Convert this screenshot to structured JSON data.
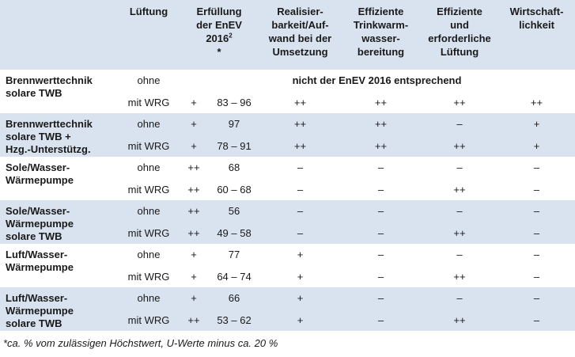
{
  "header": {
    "col_luftung": "Lüftung",
    "col_erfuellung": [
      "Erfüllung",
      "der EnEV",
      "2016",
      "*"
    ],
    "col_erfuellung_sup": "2",
    "col_realisier": [
      "Realisier-",
      "barkeit/Auf-",
      "wand bei der",
      "Umsetzung"
    ],
    "col_trinkwarm": [
      "Effiziente",
      "Trinkwarm-",
      "wasser-",
      "bereitung"
    ],
    "col_lueftung": [
      "Effiziente",
      "und",
      "erforderliche",
      "Lüftung"
    ],
    "col_wirtschaft": [
      "Wirtschaft-",
      "lichkeit"
    ]
  },
  "groups": [
    {
      "system": [
        "Brennwerttechnik",
        "solare TWB"
      ],
      "rows": [
        {
          "luftung": "ohne",
          "note": "nicht der EnEV 2016 entsprechend"
        },
        {
          "luftung": "mit WRG",
          "sym": "+",
          "pct": "83 – 96",
          "real": "++",
          "trink": "++",
          "luef": "++",
          "wirt": "++"
        }
      ]
    },
    {
      "system": [
        "Brennwerttechnik",
        "solare TWB +",
        "Hzg.-Unterstützg."
      ],
      "rows": [
        {
          "luftung": "ohne",
          "sym": "+",
          "pct": "97",
          "real": "++",
          "trink": "++",
          "luef": "–",
          "wirt": "+"
        },
        {
          "luftung": "mit WRG",
          "sym": "+",
          "pct": "78 – 91",
          "real": "++",
          "trink": "++",
          "luef": "++",
          "wirt": "+"
        }
      ]
    },
    {
      "system": [
        "Sole/Wasser-",
        "Wärmepumpe"
      ],
      "rows": [
        {
          "luftung": "ohne",
          "sym": "++",
          "pct": "68",
          "real": "–",
          "trink": "–",
          "luef": "–",
          "wirt": "–"
        },
        {
          "luftung": "mit WRG",
          "sym": "++",
          "pct": "60 – 68",
          "real": "–",
          "trink": "–",
          "luef": "++",
          "wirt": "–"
        }
      ]
    },
    {
      "system": [
        "Sole/Wasser-",
        "Wärmepumpe",
        "solare TWB"
      ],
      "rows": [
        {
          "luftung": "ohne",
          "sym": "++",
          "pct": "56",
          "real": "–",
          "trink": "–",
          "luef": "–",
          "wirt": "–"
        },
        {
          "luftung": "mit WRG",
          "sym": "++",
          "pct": "49 – 58",
          "real": "–",
          "trink": "–",
          "luef": "++",
          "wirt": "–"
        }
      ]
    },
    {
      "system": [
        "Luft/Wasser-",
        "Wärmepumpe"
      ],
      "rows": [
        {
          "luftung": "ohne",
          "sym": "+",
          "pct": "77",
          "real": "+",
          "trink": "–",
          "luef": "–",
          "wirt": "–"
        },
        {
          "luftung": "mit WRG",
          "sym": "+",
          "pct": "64 – 74",
          "real": "+",
          "trink": "–",
          "luef": "++",
          "wirt": "–"
        }
      ]
    },
    {
      "system": [
        "Luft/Wasser-",
        "Wärmepumpe",
        "solare TWB"
      ],
      "rows": [
        {
          "luftung": "ohne",
          "sym": "+",
          "pct": "66",
          "real": "+",
          "trink": "–",
          "luef": "–",
          "wirt": "–"
        },
        {
          "luftung": "mit WRG",
          "sym": "++",
          "pct": "53 – 62",
          "real": "+",
          "trink": "–",
          "luef": "++",
          "wirt": "–"
        }
      ]
    }
  ],
  "footnote": "*ca. % vom zulässigen Höchstwert, U-Werte minus ca. 20 %",
  "colors": {
    "band": "#d9e2ef",
    "text": "#1a1a1a"
  }
}
